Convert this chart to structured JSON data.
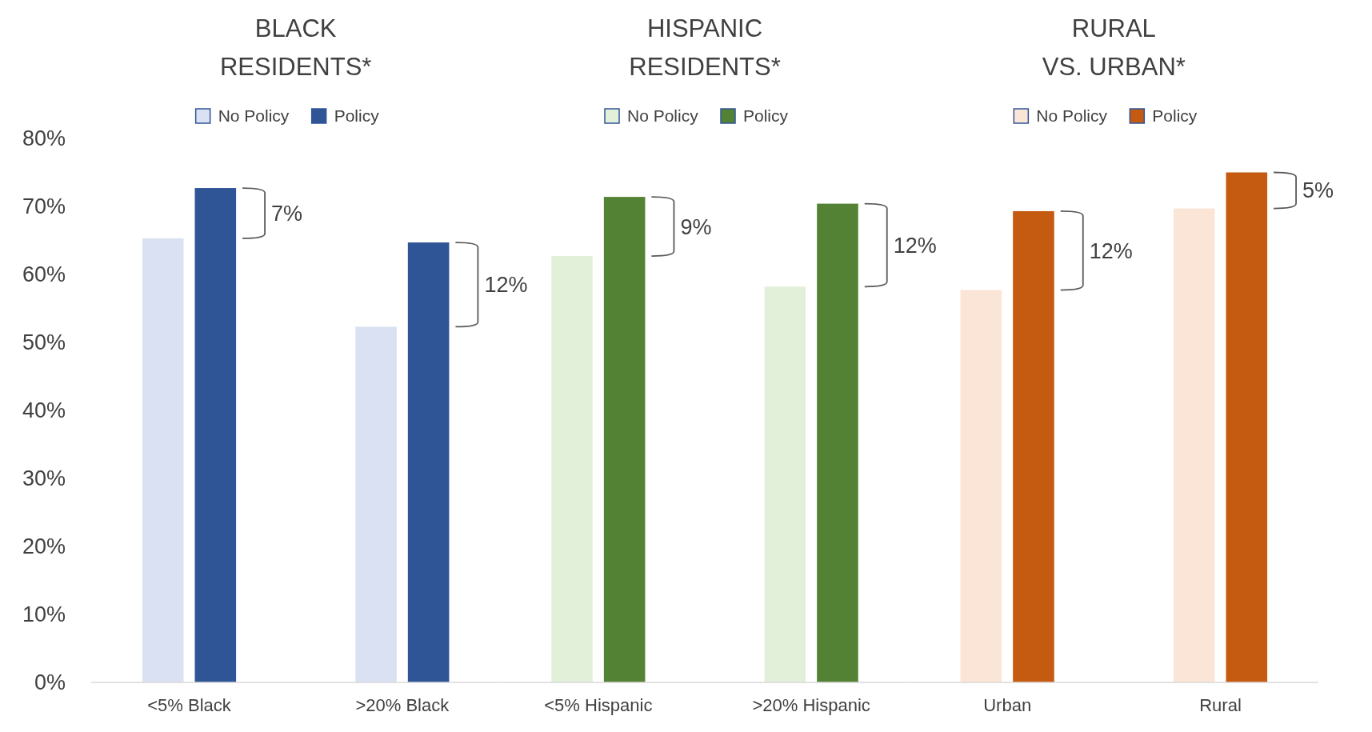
{
  "chart_data": [
    {
      "type": "bar",
      "title": "BLACK RESIDENTS*",
      "categories": [
        "<5% Black",
        ">20% Black"
      ],
      "series": [
        {
          "name": "No Policy",
          "color": "#dae1f2",
          "values": [
            65.3,
            52.3
          ]
        },
        {
          "name": "Policy",
          "color": "#2f5597",
          "values": [
            72.7,
            64.7
          ]
        }
      ],
      "ylim": [
        0,
        80
      ],
      "yticks": [
        {
          "value": 0,
          "label": "0%"
        },
        {
          "value": 10,
          "label": "10%"
        },
        {
          "value": 20,
          "label": "20%"
        },
        {
          "value": 30,
          "label": "30%"
        },
        {
          "value": 40,
          "label": "40%"
        },
        {
          "value": 50,
          "label": "50%"
        },
        {
          "value": 60,
          "label": "60%"
        },
        {
          "value": 70,
          "label": "70%"
        },
        {
          "value": 80,
          "label": "80%"
        }
      ],
      "annotations": [
        "7%",
        "12%"
      ],
      "legend": "top",
      "grid": false
    },
    {
      "type": "bar",
      "title": "HISPANIC RESIDENTS*",
      "categories": [
        "<5% Hispanic",
        ">20% Hispanic"
      ],
      "series": [
        {
          "name": "No Policy",
          "color": "#e2f0d9",
          "values": [
            62.7,
            58.2
          ]
        },
        {
          "name": "Policy",
          "color": "#548235",
          "values": [
            71.4,
            70.4
          ]
        }
      ],
      "ylim": [
        0,
        80
      ],
      "tick_labels": "x",
      "annotations": [
        "9%",
        "12%"
      ],
      "legend": "top",
      "grid": false
    },
    {
      "type": "bar",
      "title": "RURAL VS. URBAN*",
      "categories": [
        "Urban",
        "Rural"
      ],
      "series": [
        {
          "name": "No Policy",
          "color": "#fbe5d6",
          "values": [
            57.7,
            69.7
          ]
        },
        {
          "name": "Policy",
          "color": "#c55a11",
          "values": [
            69.3,
            75.0
          ]
        }
      ],
      "ylim": [
        0,
        80
      ],
      "tick_labels": "x",
      "annotations": [
        "12%",
        "5%"
      ],
      "legend": "top",
      "grid": false
    }
  ]
}
